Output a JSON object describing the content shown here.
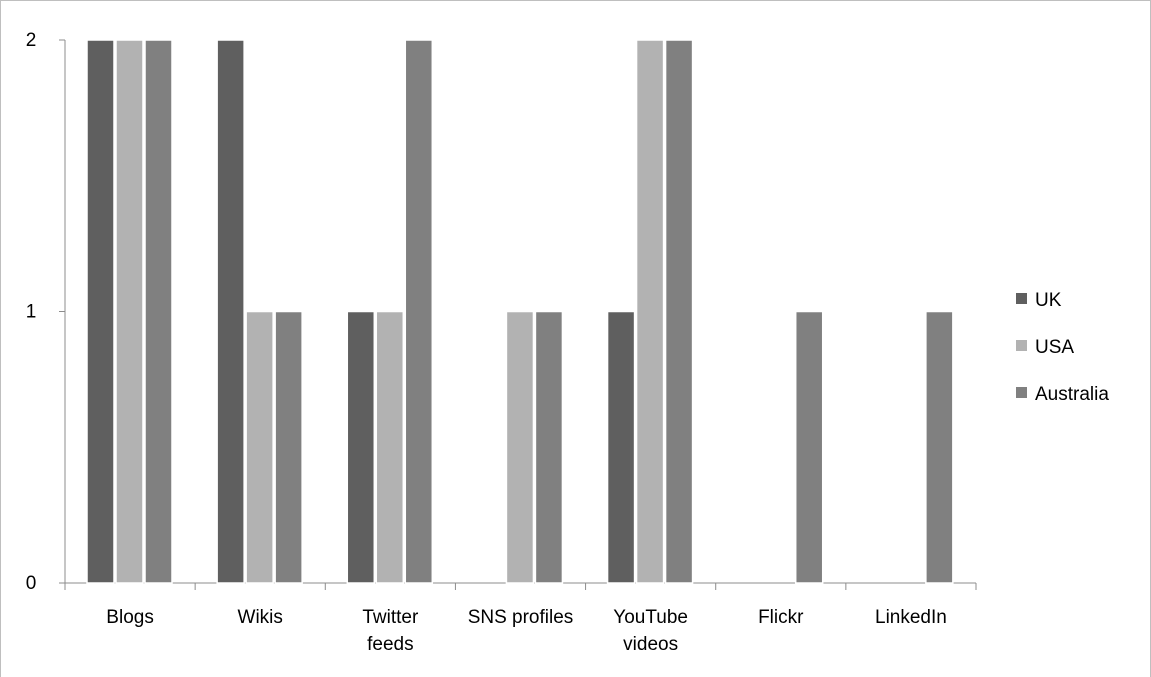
{
  "chart_data": {
    "type": "bar",
    "title": "",
    "xlabel": "",
    "ylabel": "",
    "categories": [
      [
        "Blogs"
      ],
      [
        "Wikis"
      ],
      [
        "Twitter",
        "feeds"
      ],
      [
        "SNS profiles"
      ],
      [
        "YouTube",
        "videos"
      ],
      [
        "Flickr"
      ],
      [
        "LinkedIn"
      ]
    ],
    "series": [
      {
        "name": "UK",
        "color": "#5f5f5f",
        "values": [
          2,
          2,
          1,
          0,
          1,
          0,
          0
        ]
      },
      {
        "name": "USA",
        "color": "#b2b2b2",
        "values": [
          2,
          1,
          1,
          1,
          2,
          0,
          0
        ]
      },
      {
        "name": "Australia",
        "color": "#808080",
        "values": [
          2,
          1,
          2,
          1,
          2,
          1,
          1
        ]
      }
    ],
    "ylim": [
      0,
      2
    ],
    "yticks": [
      "0",
      "1",
      "2"
    ],
    "grid": false,
    "legend_position": "right"
  }
}
